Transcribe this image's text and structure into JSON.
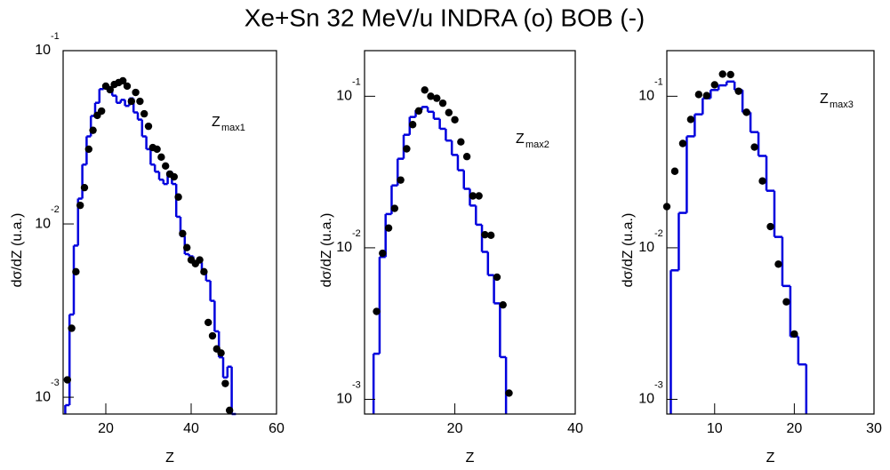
{
  "title": "Xe+Sn 32 MeV/u INDRA (o)  BOB (-)",
  "chart_data": [
    {
      "type": "scatter",
      "log_y": true,
      "xlabel": "Z",
      "ylabel": "dσ/dZ (u.a.)",
      "annotation": {
        "text": "Z",
        "sub": "max1"
      },
      "xlim": [
        10,
        60
      ],
      "xticks": [
        20,
        40,
        60
      ],
      "ylim": [
        0.0008,
        0.1
      ],
      "yticks": [
        {
          "value": 0.001,
          "label": "10",
          "exponent": "-3"
        },
        {
          "value": 0.01,
          "label": "10",
          "exponent": "-2"
        },
        {
          "value": 0.1,
          "label": "10",
          "exponent": "-1"
        }
      ],
      "color": "#000000",
      "x": [
        11,
        12,
        13,
        14,
        15,
        16,
        17,
        18,
        19,
        20,
        21,
        22,
        23,
        24,
        25,
        26,
        27,
        28,
        29,
        30,
        31,
        32,
        33,
        34,
        35,
        36,
        37,
        38,
        39,
        40,
        41,
        42,
        43,
        44,
        45,
        46,
        47,
        48,
        49
      ],
      "values": [
        0.00126,
        0.0025,
        0.0053,
        0.0128,
        0.0162,
        0.027,
        0.0347,
        0.0423,
        0.0448,
        0.0624,
        0.0595,
        0.0638,
        0.0654,
        0.067,
        0.0624,
        0.051,
        0.0574,
        0.051,
        0.0432,
        0.0366,
        0.0276,
        0.027,
        0.0243,
        0.0216,
        0.0194,
        0.0187,
        0.0143,
        0.0088,
        0.0073,
        0.0062,
        0.0059,
        0.0062,
        0.0053,
        0.0027,
        0.00226,
        0.0019,
        0.0018,
        0.0012,
        0.00084
      ],
      "histogram": {
        "color": "#0000dd",
        "bins": [
          10.5,
          11.5,
          12.5,
          13.5,
          14.5,
          15.5,
          16.5,
          17.5,
          18.5,
          19.5,
          20.5,
          21.5,
          22.5,
          23.5,
          24.5,
          25.5,
          26.5,
          27.5,
          28.5,
          29.5,
          30.5,
          31.5,
          32.5,
          33.5,
          34.5,
          35.5,
          36.5,
          37.5,
          38.5,
          39.5,
          40.5,
          41.5,
          42.5,
          43.5,
          44.5,
          45.5,
          46.5,
          47.5,
          48.5,
          49.5,
          50.5
        ],
        "counts": [
          0.0009,
          0.003,
          0.0075,
          0.014,
          0.022,
          0.032,
          0.042,
          0.05,
          0.06,
          0.063,
          0.059,
          0.055,
          0.05,
          0.052,
          0.048,
          0.053,
          0.044,
          0.04,
          0.032,
          0.027,
          0.022,
          0.02,
          0.018,
          0.017,
          0.02,
          0.017,
          0.011,
          0.0085,
          0.0067,
          0.0065,
          0.0058,
          0.006,
          0.0053,
          0.0047,
          0.0036,
          0.0024,
          0.0017,
          0.0013,
          0.0015,
          0.0008
        ]
      }
    },
    {
      "type": "scatter",
      "log_y": true,
      "xlabel": "Z",
      "ylabel": "dσ/dZ (u.a.)",
      "annotation": {
        "text": "Z",
        "sub": "max2"
      },
      "xlim": [
        5,
        40
      ],
      "xticks": [
        20,
        40
      ],
      "ylim": [
        0.0008,
        0.2
      ],
      "yticks": [
        {
          "value": 0.001,
          "label": "10",
          "exponent": "-3"
        },
        {
          "value": 0.01,
          "label": "10",
          "exponent": "-2"
        },
        {
          "value": 0.1,
          "label": "10",
          "exponent": "-1"
        }
      ],
      "color": "#000000",
      "x": [
        7,
        8,
        9,
        10,
        11,
        12,
        13,
        14,
        15,
        16,
        17,
        18,
        19,
        20,
        21,
        22,
        23,
        24,
        25,
        26,
        27,
        28,
        29
      ],
      "values": [
        0.0038,
        0.0092,
        0.0135,
        0.0182,
        0.028,
        0.045,
        0.065,
        0.08,
        0.11,
        0.1,
        0.097,
        0.09,
        0.078,
        0.07,
        0.05,
        0.04,
        0.022,
        0.022,
        0.0122,
        0.0121,
        0.0064,
        0.0042,
        0.0011
      ],
      "histogram": {
        "color": "#0000dd",
        "bins": [
          6.5,
          7.5,
          8.5,
          9.5,
          10.5,
          11.5,
          12.5,
          13.5,
          14.5,
          15.5,
          16.5,
          17.5,
          18.5,
          19.5,
          20.5,
          21.5,
          22.5,
          23.5,
          24.5,
          25.5,
          26.5,
          27.5,
          28.5
        ],
        "counts": [
          0.002,
          0.0087,
          0.0167,
          0.0258,
          0.0387,
          0.0557,
          0.073,
          0.081,
          0.085,
          0.079,
          0.071,
          0.061,
          0.051,
          0.041,
          0.0325,
          0.0245,
          0.019,
          0.0142,
          0.0094,
          0.0066,
          0.0043,
          0.0019
        ]
      }
    },
    {
      "type": "scatter",
      "log_y": true,
      "xlabel": "Z",
      "ylabel": "dσ/dZ (u.a.)",
      "annotation": {
        "text": "Z",
        "sub": "max3"
      },
      "xlim": [
        4,
        30
      ],
      "xticks": [
        10,
        20,
        30
      ],
      "ylim": [
        0.0008,
        0.2
      ],
      "yticks": [
        {
          "value": 0.001,
          "label": "10",
          "exponent": "-3"
        },
        {
          "value": 0.01,
          "label": "10",
          "exponent": "-2"
        },
        {
          "value": 0.1,
          "label": "10",
          "exponent": "-1"
        }
      ],
      "color": "#000000",
      "x": [
        4,
        5,
        6,
        7,
        8,
        9,
        10,
        11,
        12,
        13,
        14,
        15,
        16,
        17,
        18,
        19,
        20
      ],
      "values": [
        0.0187,
        0.032,
        0.0488,
        0.0703,
        0.1027,
        0.101,
        0.119,
        0.14,
        0.139,
        0.108,
        0.0784,
        0.0462,
        0.0276,
        0.0138,
        0.0078,
        0.0044,
        0.0027
      ],
      "histogram": {
        "color": "#0000dd",
        "bins": [
          4.5,
          5.5,
          6.5,
          7.5,
          8.5,
          9.5,
          10.5,
          11.5,
          12.5,
          13.5,
          14.5,
          15.5,
          16.5,
          17.5,
          18.5,
          19.5,
          20.5,
          21.5
        ],
        "counts": [
          0.0071,
          0.017,
          0.0544,
          0.076,
          0.097,
          0.11,
          0.118,
          0.125,
          0.11,
          0.0784,
          0.058,
          0.0404,
          0.0238,
          0.0118,
          0.0056,
          0.0026,
          0.0017
        ]
      }
    }
  ]
}
